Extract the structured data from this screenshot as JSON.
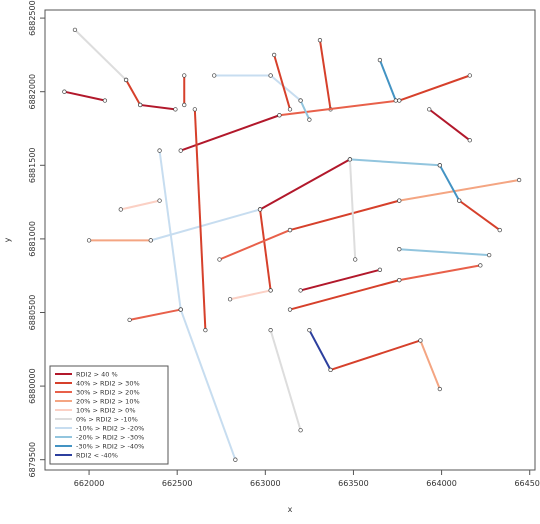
{
  "chart_data": {
    "type": "network",
    "x_label": "x",
    "y_label": "y",
    "xlim": [
      661750,
      664530
    ],
    "ylim": [
      6879430,
      6882555
    ],
    "xticks": [
      662000,
      662500,
      663000,
      663500,
      664000,
      664500
    ],
    "yticks": [
      6879500,
      6880000,
      6880500,
      6881000,
      6881500,
      6882000,
      6882500
    ],
    "legend_position": "bottom-left",
    "legend": [
      {
        "label": "RDI2 > 40 %",
        "color": "#b2182b"
      },
      {
        "label": "40% > RDI2 > 30%",
        "color": "#d6402b"
      },
      {
        "label": "30% > RDI2 > 20%",
        "color": "#e8604a"
      },
      {
        "label": "20% > RDI2 > 10%",
        "color": "#f4a582"
      },
      {
        "label": "10% > RDI2 > 0%",
        "color": "#fbd0c4"
      },
      {
        "label": "0% > RDI2 > -10%",
        "color": "#dddddd"
      },
      {
        "label": "-10% > RDI2 > -20%",
        "color": "#c7ddf0"
      },
      {
        "label": "-20% > RDI2 > -30%",
        "color": "#92c5de"
      },
      {
        "label": "-30% > RDI2 > -40%",
        "color": "#4393c3"
      },
      {
        "label": "RDI2 < -40%",
        "color": "#2c3f9e"
      }
    ],
    "edges": [
      {
        "x": [
          661920,
          662210
        ],
        "y": [
          6882420,
          6882080
        ],
        "class": 5
      },
      {
        "x": [
          662210,
          662290
        ],
        "y": [
          6882080,
          6881910
        ],
        "class": 1
      },
      {
        "x": [
          661860,
          662090
        ],
        "y": [
          6882000,
          6881940
        ],
        "class": 0
      },
      {
        "x": [
          662290,
          662490
        ],
        "y": [
          6881910,
          6881880
        ],
        "class": 0
      },
      {
        "x": [
          662540,
          662540
        ],
        "y": [
          6882110,
          6881910
        ],
        "class": 1
      },
      {
        "x": [
          662710,
          663030
        ],
        "y": [
          6882110,
          6882110
        ],
        "class": 6
      },
      {
        "x": [
          663030,
          663200
        ],
        "y": [
          6882110,
          6881940
        ],
        "class": 6
      },
      {
        "x": [
          663050,
          663140
        ],
        "y": [
          6882250,
          6881880
        ],
        "class": 1
      },
      {
        "x": [
          663310,
          663370
        ],
        "y": [
          6882350,
          6881880
        ],
        "class": 1
      },
      {
        "x": [
          662520,
          663080
        ],
        "y": [
          6881600,
          6881840
        ],
        "class": 0
      },
      {
        "x": [
          663080,
          663760
        ],
        "y": [
          6881840,
          6881940
        ],
        "class": 2
      },
      {
        "x": [
          663760,
          664160
        ],
        "y": [
          6881940,
          6882110
        ],
        "class": 1
      },
      {
        "x": [
          662970,
          663480
        ],
        "y": [
          6881200,
          6881540
        ],
        "class": 0
      },
      {
        "x": [
          663480,
          663990
        ],
        "y": [
          6881540,
          6881500
        ],
        "class": 7
      },
      {
        "x": [
          662350,
          662970
        ],
        "y": [
          6880990,
          6881200
        ],
        "class": 6
      },
      {
        "x": [
          662000,
          662350
        ],
        "y": [
          6880990,
          6880990
        ],
        "class": 3
      },
      {
        "x": [
          663140,
          663760
        ],
        "y": [
          6881060,
          6881260
        ],
        "class": 1
      },
      {
        "x": [
          663760,
          664440
        ],
        "y": [
          6881260,
          6881400
        ],
        "class": 3
      },
      {
        "x": [
          663200,
          663650
        ],
        "y": [
          6880650,
          6880790
        ],
        "class": 0
      },
      {
        "x": [
          663140,
          663760
        ],
        "y": [
          6880520,
          6880720
        ],
        "class": 1
      },
      {
        "x": [
          663760,
          664220
        ],
        "y": [
          6880720,
          6880820
        ],
        "class": 2
      },
      {
        "x": [
          663250,
          663370
        ],
        "y": [
          6880380,
          6880110
        ],
        "class": 9
      },
      {
        "x": [
          663370,
          663880
        ],
        "y": [
          6880110,
          6880310
        ],
        "class": 1
      },
      {
        "x": [
          663760,
          664270
        ],
        "y": [
          6880930,
          6880890
        ],
        "class": 7
      },
      {
        "x": [
          662230,
          662520
        ],
        "y": [
          6880450,
          6880520
        ],
        "class": 2
      },
      {
        "x": [
          662400,
          662520
        ],
        "y": [
          6881600,
          6880520
        ],
        "class": 6
      },
      {
        "x": [
          662520,
          662830
        ],
        "y": [
          6880520,
          6879500
        ],
        "class": 6
      },
      {
        "x": [
          662600,
          662660
        ],
        "y": [
          6881880,
          6880380
        ],
        "class": 1
      },
      {
        "x": [
          662970,
          663030
        ],
        "y": [
          6881200,
          6880650
        ],
        "class": 1
      },
      {
        "x": [
          662800,
          663030
        ],
        "y": [
          6880590,
          6880650
        ],
        "class": 4
      },
      {
        "x": [
          663480,
          663510
        ],
        "y": [
          6881540,
          6880860
        ],
        "class": 5
      },
      {
        "x": [
          663930,
          664160
        ],
        "y": [
          6881880,
          6881670
        ],
        "class": 0
      },
      {
        "x": [
          663650,
          663740
        ],
        "y": [
          6882215,
          6881940
        ],
        "class": 8
      },
      {
        "x": [
          663200,
          663250
        ],
        "y": [
          6881940,
          6881810
        ],
        "class": 7
      },
      {
        "x": [
          663880,
          663990
        ],
        "y": [
          6880310,
          6879980
        ],
        "class": 3
      },
      {
        "x": [
          663030,
          663200
        ],
        "y": [
          6880380,
          6879700
        ],
        "class": 5
      },
      {
        "x": [
          664100,
          664330
        ],
        "y": [
          6881260,
          6881060
        ],
        "class": 1
      },
      {
        "x": [
          662740,
          663140
        ],
        "y": [
          6880860,
          6881060
        ],
        "class": 2
      },
      {
        "x": [
          662180,
          662400
        ],
        "y": [
          6881200,
          6881260
        ],
        "class": 4
      },
      {
        "x": [
          663990,
          664100
        ],
        "y": [
          6881500,
          6881260
        ],
        "class": 8
      }
    ]
  }
}
